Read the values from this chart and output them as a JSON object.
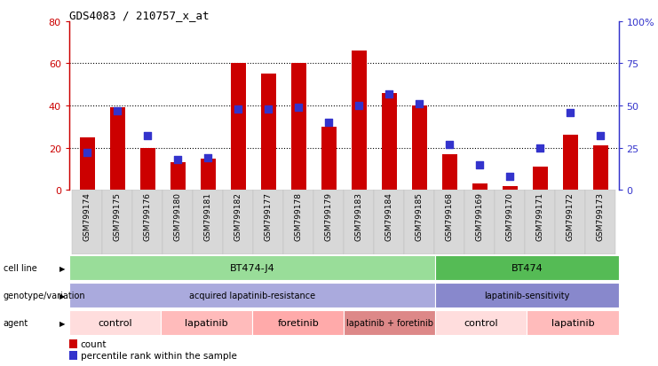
{
  "title": "GDS4083 / 210757_x_at",
  "samples": [
    "GSM799174",
    "GSM799175",
    "GSM799176",
    "GSM799180",
    "GSM799181",
    "GSM799182",
    "GSM799177",
    "GSM799178",
    "GSM799179",
    "GSM799183",
    "GSM799184",
    "GSM799185",
    "GSM799168",
    "GSM799169",
    "GSM799170",
    "GSM799171",
    "GSM799172",
    "GSM799173"
  ],
  "count_values": [
    25,
    39,
    20,
    13,
    15,
    60,
    55,
    60,
    30,
    66,
    46,
    40,
    17,
    3,
    2,
    11,
    26,
    21
  ],
  "percentile_values": [
    22,
    47,
    32,
    18,
    19,
    48,
    48,
    49,
    40,
    50,
    57,
    51,
    27,
    15,
    8,
    25,
    46,
    32
  ],
  "ylim_left": [
    0,
    80
  ],
  "ylim_right": [
    0,
    100
  ],
  "yticks_left": [
    0,
    20,
    40,
    60,
    80
  ],
  "yticks_right": [
    0,
    25,
    50,
    75,
    100
  ],
  "yticklabels_right": [
    "0",
    "25",
    "50",
    "75",
    "100%"
  ],
  "bar_color": "#cc0000",
  "dot_color": "#3333cc",
  "cell_line_groups": [
    {
      "label": "BT474-J4",
      "start": 0,
      "end": 11,
      "color": "#99dd99"
    },
    {
      "label": "BT474",
      "start": 12,
      "end": 17,
      "color": "#55bb55"
    }
  ],
  "genotype_groups": [
    {
      "label": "acquired lapatinib-resistance",
      "start": 0,
      "end": 11,
      "color": "#aaaadd"
    },
    {
      "label": "lapatinib-sensitivity",
      "start": 12,
      "end": 17,
      "color": "#8888cc"
    }
  ],
  "agent_groups": [
    {
      "label": "control",
      "start": 0,
      "end": 2,
      "color": "#ffdddd"
    },
    {
      "label": "lapatinib",
      "start": 3,
      "end": 5,
      "color": "#ffbbbb"
    },
    {
      "label": "foretinib",
      "start": 6,
      "end": 8,
      "color": "#ffaaaa"
    },
    {
      "label": "lapatinib + foretinib",
      "start": 9,
      "end": 11,
      "color": "#dd8888"
    },
    {
      "label": "control",
      "start": 12,
      "end": 14,
      "color": "#ffdddd"
    },
    {
      "label": "lapatinib",
      "start": 15,
      "end": 17,
      "color": "#ffbbbb"
    }
  ],
  "bar_width": 0.5,
  "dot_size": 28
}
